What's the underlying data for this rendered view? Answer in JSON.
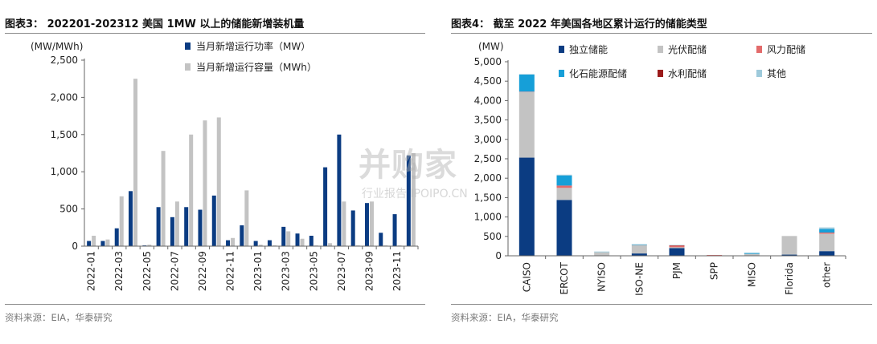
{
  "charts": [
    {
      "title": "图表3： 202201-202312 美国 1MW 以上的储能新增装机量",
      "source": "资料来源：EIA，华泰研究"
    },
    {
      "title": "图表4： 截至 2022 年美国各地区累计运行的储能类型",
      "source": "资料来源：EIA，华泰研究"
    }
  ],
  "watermark": {
    "main": "并购家",
    "sub": "行业报告 IPOIPO.CN"
  },
  "chart_data": [
    {
      "type": "bar",
      "ylabel": "(MW/MWh)",
      "ylim": [
        0,
        2500
      ],
      "yticks": [
        0,
        500,
        1000,
        1500,
        2000,
        2500
      ],
      "ytick_labels": [
        "0",
        "500",
        "1,000",
        "1,500",
        "2,000",
        "2,500"
      ],
      "categories": [
        "2022-01",
        "2022-02",
        "2022-03",
        "2022-04",
        "2022-05",
        "2022-06",
        "2022-07",
        "2022-08",
        "2022-09",
        "2022-10",
        "2022-11",
        "2022-12",
        "2023-01",
        "2023-02",
        "2023-03",
        "2023-04",
        "2023-05",
        "2023-06",
        "2023-07",
        "2023-08",
        "2023-09",
        "2023-10",
        "2023-11",
        "2023-12"
      ],
      "tick_labels": [
        "2022-01",
        "",
        "2022-03",
        "",
        "2022-05",
        "",
        "2022-07",
        "",
        "2022-09",
        "",
        "2022-11",
        "",
        "2023-01",
        "",
        "2023-03",
        "",
        "2023-05",
        "",
        "2023-07",
        "",
        "2023-09",
        "",
        "2023-11",
        ""
      ],
      "legend_position": "top",
      "grid": false,
      "series": [
        {
          "name": "当月新增运行功率（MW）",
          "color": "#0b3c82",
          "values": [
            70,
            70,
            240,
            740,
            10,
            525,
            390,
            525,
            490,
            680,
            80,
            280,
            70,
            80,
            260,
            170,
            140,
            1060,
            1500,
            480,
            580,
            180,
            430,
            1220
          ]
        },
        {
          "name": "当月新增运行容量（MWh）",
          "color": "#c3c3c3",
          "values": [
            140,
            90,
            670,
            2250,
            20,
            1280,
            600,
            1500,
            1690,
            1730,
            110,
            750,
            20,
            10,
            200,
            100,
            10,
            40,
            600,
            10,
            600,
            10,
            10,
            1250
          ]
        }
      ]
    },
    {
      "type": "bar",
      "stacked": true,
      "ylabel": "(MW)",
      "ylim": [
        0,
        5000
      ],
      "yticks": [
        0,
        500,
        1000,
        1500,
        2000,
        2500,
        3000,
        3500,
        4000,
        4500,
        5000
      ],
      "ytick_labels": [
        "0",
        "500",
        "1,000",
        "1,500",
        "2,000",
        "2,500",
        "3,000",
        "3,500",
        "4,000",
        "4,500",
        "5,000"
      ],
      "categories": [
        "CAISO",
        "ERCOT",
        "NYISO",
        "ISO-NE",
        "PJM",
        "SPP",
        "MISO",
        "Florida",
        "other"
      ],
      "legend_position": "top",
      "grid": false,
      "series": [
        {
          "name": "独立储能",
          "color": "#0b3c82",
          "values": [
            2530,
            1440,
            10,
            60,
            200,
            0,
            10,
            30,
            120
          ]
        },
        {
          "name": "光伏配储",
          "color": "#c3c3c3",
          "values": [
            1690,
            310,
            80,
            220,
            20,
            10,
            40,
            480,
            450
          ]
        },
        {
          "name": "风力配储",
          "color": "#e36b6b",
          "values": [
            10,
            60,
            0,
            0,
            40,
            10,
            0,
            0,
            30
          ]
        },
        {
          "name": "化石能源配储",
          "color": "#169fd8",
          "values": [
            440,
            260,
            0,
            10,
            0,
            0,
            20,
            0,
            90
          ]
        },
        {
          "name": "水利配储",
          "color": "#9b1b1b",
          "values": [
            0,
            0,
            0,
            0,
            10,
            0,
            0,
            0,
            0
          ]
        },
        {
          "name": "其他",
          "color": "#9ecadb",
          "values": [
            10,
            20,
            20,
            10,
            10,
            0,
            10,
            0,
            40
          ]
        }
      ]
    }
  ]
}
